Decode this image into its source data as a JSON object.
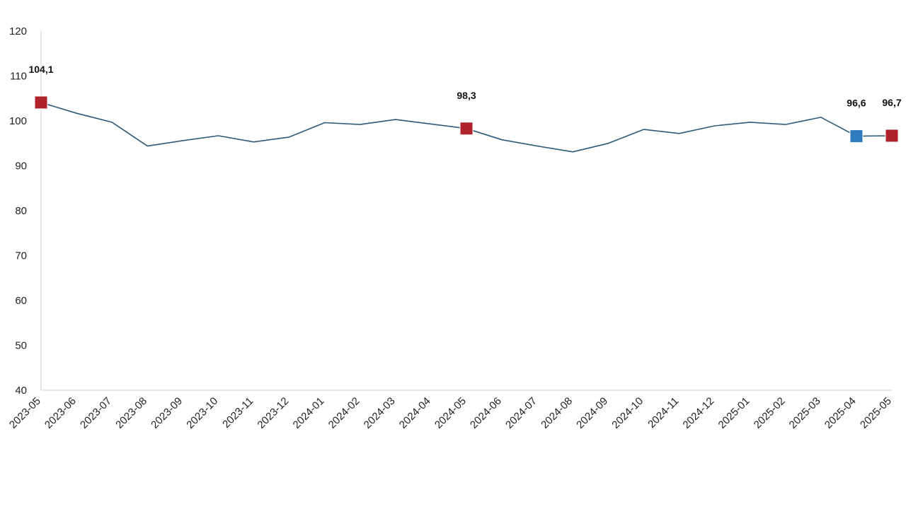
{
  "chart_data": {
    "type": "line",
    "title": "",
    "xlabel": "",
    "ylabel": "",
    "ylim": [
      40,
      120
    ],
    "yticks": [
      40,
      50,
      60,
      70,
      80,
      90,
      100,
      110,
      120
    ],
    "grid": false,
    "legend": "none",
    "categories": [
      "2023-05",
      "2023-06",
      "2023-07",
      "2023-08",
      "2023-09",
      "2023-10",
      "2023-11",
      "2023-12",
      "2024-01",
      "2024-02",
      "2024-03",
      "2024-04",
      "2024-05",
      "2024-06",
      "2024-07",
      "2024-08",
      "2024-09",
      "2024-10",
      "2024-11",
      "2024-12",
      "2025-01",
      "2025-02",
      "2025-03",
      "2025-04",
      "2025-05"
    ],
    "series": [
      {
        "values": [
          104.1,
          101.7,
          99.7,
          94.4,
          95.6,
          96.7,
          95.3,
          96.4,
          99.6,
          99.2,
          100.3,
          99.3,
          98.3,
          95.8,
          94.4,
          93.1,
          95.0,
          98.1,
          97.2,
          98.9,
          99.7,
          99.2,
          100.8,
          96.6,
          96.7
        ],
        "color": "#2E5A7A"
      }
    ],
    "highlighted_points": [
      {
        "category": "2023-05",
        "value": 104.1,
        "label": "104,1",
        "color": "#B0222A"
      },
      {
        "category": "2024-05",
        "value": 98.3,
        "label": "98,3",
        "color": "#B0222A"
      },
      {
        "category": "2025-04",
        "value": 96.6,
        "label": "96,6",
        "color": "#2E7BC0"
      },
      {
        "category": "2025-05",
        "value": 96.7,
        "label": "96,7",
        "color": "#B0222A"
      }
    ]
  }
}
